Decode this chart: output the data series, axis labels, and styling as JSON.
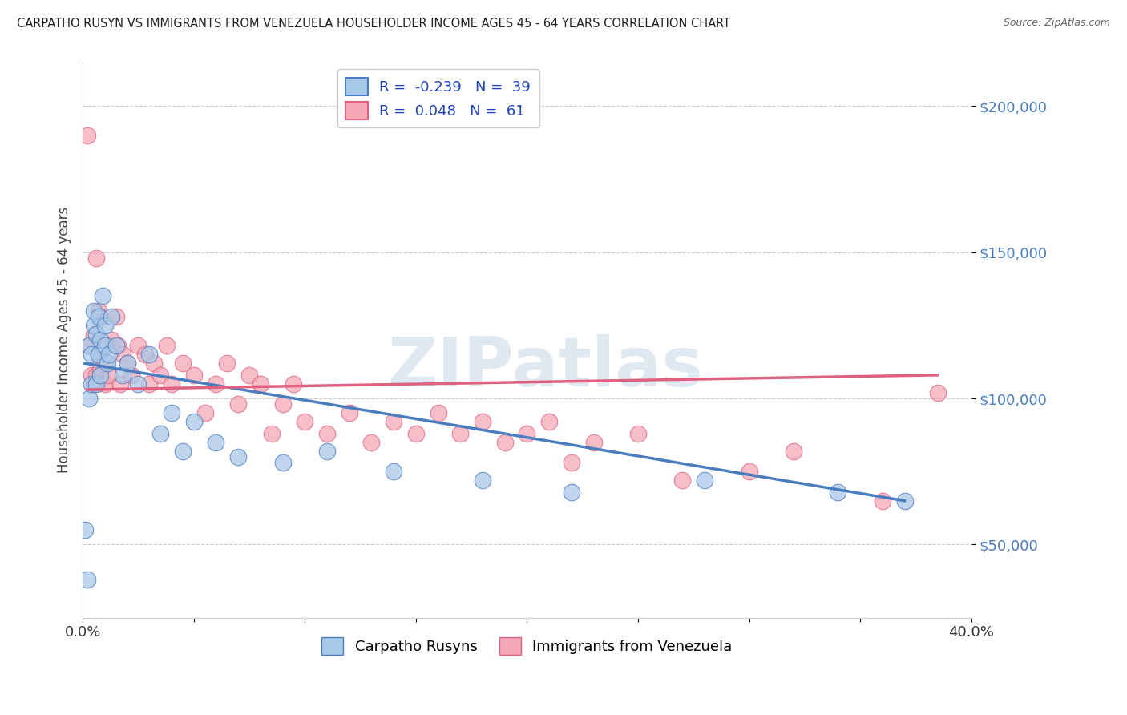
{
  "title": "CARPATHO RUSYN VS IMMIGRANTS FROM VENEZUELA HOUSEHOLDER INCOME AGES 45 - 64 YEARS CORRELATION CHART",
  "source": "Source: ZipAtlas.com",
  "ylabel": "Householder Income Ages 45 - 64 years",
  "watermark": "ZIPatlas",
  "xlim": [
    0.0,
    0.4
  ],
  "ylim": [
    25000,
    215000
  ],
  "yticks": [
    50000,
    100000,
    150000,
    200000
  ],
  "ytick_labels": [
    "$50,000",
    "$100,000",
    "$150,000",
    "$200,000"
  ],
  "xticks": [
    0.0,
    0.05,
    0.1,
    0.15,
    0.2,
    0.25,
    0.3,
    0.35,
    0.4
  ],
  "series1_color": "#a8c8e8",
  "series2_color": "#f4a8b8",
  "line1_color": "#4a7cc0",
  "line2_color": "#e06080",
  "series1_label": "Carpatho Rusyns",
  "series2_label": "Immigrants from Venezuela",
  "R1": -0.239,
  "N1": 39,
  "R2": 0.048,
  "N2": 61,
  "legend_R_color": "#2244bb",
  "background_color": "#ffffff",
  "series1_x": [
    0.001,
    0.002,
    0.003,
    0.003,
    0.004,
    0.004,
    0.005,
    0.005,
    0.006,
    0.006,
    0.007,
    0.007,
    0.008,
    0.008,
    0.009,
    0.01,
    0.01,
    0.011,
    0.012,
    0.013,
    0.015,
    0.018,
    0.02,
    0.025,
    0.03,
    0.035,
    0.04,
    0.045,
    0.05,
    0.06,
    0.07,
    0.09,
    0.11,
    0.14,
    0.18,
    0.22,
    0.28,
    0.34,
    0.37
  ],
  "series1_y": [
    55000,
    38000,
    100000,
    118000,
    105000,
    115000,
    125000,
    130000,
    105000,
    122000,
    128000,
    115000,
    120000,
    108000,
    135000,
    118000,
    125000,
    112000,
    115000,
    128000,
    118000,
    108000,
    112000,
    105000,
    115000,
    88000,
    95000,
    82000,
    92000,
    85000,
    80000,
    78000,
    82000,
    75000,
    72000,
    68000,
    72000,
    68000,
    65000
  ],
  "series2_x": [
    0.002,
    0.003,
    0.004,
    0.005,
    0.005,
    0.006,
    0.006,
    0.007,
    0.007,
    0.008,
    0.008,
    0.009,
    0.01,
    0.01,
    0.011,
    0.012,
    0.013,
    0.015,
    0.016,
    0.017,
    0.018,
    0.02,
    0.022,
    0.025,
    0.028,
    0.03,
    0.032,
    0.035,
    0.038,
    0.04,
    0.045,
    0.05,
    0.055,
    0.06,
    0.065,
    0.07,
    0.075,
    0.08,
    0.085,
    0.09,
    0.095,
    0.1,
    0.11,
    0.12,
    0.13,
    0.14,
    0.15,
    0.16,
    0.17,
    0.18,
    0.19,
    0.2,
    0.21,
    0.22,
    0.23,
    0.25,
    0.27,
    0.3,
    0.32,
    0.36,
    0.385
  ],
  "series2_y": [
    190000,
    118000,
    108000,
    122000,
    105000,
    148000,
    108000,
    115000,
    130000,
    110000,
    128000,
    118000,
    105000,
    112000,
    118000,
    108000,
    120000,
    128000,
    118000,
    105000,
    115000,
    112000,
    108000,
    118000,
    115000,
    105000,
    112000,
    108000,
    118000,
    105000,
    112000,
    108000,
    95000,
    105000,
    112000,
    98000,
    108000,
    105000,
    88000,
    98000,
    105000,
    92000,
    88000,
    95000,
    85000,
    92000,
    88000,
    95000,
    88000,
    92000,
    85000,
    88000,
    92000,
    78000,
    85000,
    88000,
    72000,
    75000,
    82000,
    65000,
    102000
  ]
}
